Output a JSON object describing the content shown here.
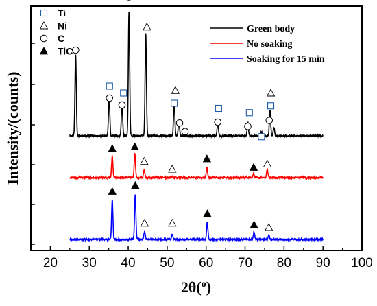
{
  "chart_data": {
    "type": "line",
    "xlabel": "2θ(",
    "xlabel_sup": "o",
    "xlabel_close": ")",
    "ylabel": "Intensity/(counts)",
    "xlim": [
      15,
      100
    ],
    "x_ticks": [
      "20",
      "30",
      "40",
      "50",
      "60",
      "70",
      "80",
      "90",
      "100"
    ],
    "y_ticks": "unlabeled",
    "legend_position": "top-right",
    "marker_legend_position": "top-left",
    "marker_legend": [
      {
        "symbol": "square",
        "label": "Ti"
      },
      {
        "symbol": "triangle-open",
        "label": "Ni"
      },
      {
        "symbol": "circle",
        "label": "C"
      },
      {
        "symbol": "triangle-filled",
        "label": "TiC"
      }
    ],
    "series": [
      {
        "name": "Green body",
        "color": "#000000",
        "x_range": [
          25,
          90
        ],
        "baseline": 0.0,
        "peaks": [
          {
            "x": 26.5,
            "h": 0.95,
            "phase": "C"
          },
          {
            "x": 35.1,
            "h": 0.45,
            "phase": "Ti"
          },
          {
            "x": 38.4,
            "h": 0.38,
            "phase": "Ti"
          },
          {
            "x": 40.2,
            "h": 1.45,
            "phase": "Ti"
          },
          {
            "x": 44.5,
            "h": 1.2,
            "phase": "Ni"
          },
          {
            "x": 51.8,
            "h": 0.38,
            "phase": "Ni"
          },
          {
            "x": 53.0,
            "h": 0.18,
            "phase": "Ti"
          },
          {
            "x": 63.0,
            "h": 0.15,
            "phase": "Ti"
          },
          {
            "x": 70.7,
            "h": 0.16,
            "phase": "Ti"
          },
          {
            "x": 74.2,
            "h": 0.05,
            "phase": "Ti"
          },
          {
            "x": 76.4,
            "h": 0.3,
            "phase": "Ni"
          },
          {
            "x": 77.4,
            "h": 0.1,
            "phase": "Ti"
          }
        ],
        "markers": [
          {
            "x": 26.5,
            "symbol": "circle",
            "h": 1.0
          },
          {
            "x": 35.2,
            "symbol": "circle",
            "h": 0.44
          },
          {
            "x": 35.2,
            "symbol": "square",
            "h": 0.58
          },
          {
            "x": 38.4,
            "symbol": "circle",
            "h": 0.36
          },
          {
            "x": 38.8,
            "symbol": "square",
            "h": 0.5
          },
          {
            "x": 40.2,
            "symbol": "circle",
            "h": 1.62
          },
          {
            "x": 40.2,
            "symbol": "square",
            "h": 1.78
          },
          {
            "x": 44.8,
            "symbol": "triangle-open",
            "h": 1.27
          },
          {
            "x": 51.8,
            "symbol": "square",
            "h": 0.38
          },
          {
            "x": 52.1,
            "symbol": "triangle-open",
            "h": 0.53
          },
          {
            "x": 53.2,
            "symbol": "circle",
            "h": 0.15
          },
          {
            "x": 54.6,
            "symbol": "circle",
            "h": 0.05
          },
          {
            "x": 63.0,
            "symbol": "circle",
            "h": 0.16
          },
          {
            "x": 63.2,
            "symbol": "square",
            "h": 0.32
          },
          {
            "x": 70.7,
            "symbol": "circle",
            "h": 0.11
          },
          {
            "x": 71.1,
            "symbol": "square",
            "h": 0.27
          },
          {
            "x": 74.2,
            "symbol": "square",
            "h": -0.01
          },
          {
            "x": 76.2,
            "symbol": "circle",
            "h": 0.18
          },
          {
            "x": 76.6,
            "symbol": "square",
            "h": 0.35
          },
          {
            "x": 76.6,
            "symbol": "triangle-open",
            "h": 0.5
          }
        ]
      },
      {
        "name": "No soaking",
        "color": "#ff0000",
        "x_range": [
          25,
          90
        ],
        "baseline": 0.0,
        "peaks": [
          {
            "x": 35.9,
            "h": 0.25,
            "phase": "TiC"
          },
          {
            "x": 41.7,
            "h": 0.28,
            "phase": "TiC"
          },
          {
            "x": 44.1,
            "h": 0.1,
            "phase": "Ni"
          },
          {
            "x": 51.3,
            "h": 0.02,
            "phase": "Ni"
          },
          {
            "x": 60.2,
            "h": 0.12,
            "phase": "TiC"
          },
          {
            "x": 72.2,
            "h": 0.05,
            "phase": "TiC"
          },
          {
            "x": 75.7,
            "h": 0.1,
            "phase": "Ni"
          }
        ],
        "markers": [
          {
            "x": 35.9,
            "symbol": "triangle-filled",
            "h": 0.34
          },
          {
            "x": 41.7,
            "symbol": "triangle-filled",
            "h": 0.36
          },
          {
            "x": 44.1,
            "symbol": "triangle-open",
            "h": 0.19
          },
          {
            "x": 51.3,
            "symbol": "triangle-open",
            "h": 0.1
          },
          {
            "x": 60.2,
            "symbol": "triangle-filled",
            "h": 0.22
          },
          {
            "x": 72.2,
            "symbol": "triangle-filled",
            "h": 0.12
          },
          {
            "x": 75.7,
            "symbol": "triangle-open",
            "h": 0.16
          }
        ]
      },
      {
        "name": "Soaking for 15 min",
        "color": "#0000ff",
        "x_range": [
          25,
          90
        ],
        "baseline": 0.0,
        "peaks": [
          {
            "x": 35.9,
            "h": 0.46,
            "phase": "TiC"
          },
          {
            "x": 41.8,
            "h": 0.52,
            "phase": "TiC"
          },
          {
            "x": 44.2,
            "h": 0.09,
            "phase": "Ni"
          },
          {
            "x": 51.3,
            "h": 0.06,
            "phase": "Ni"
          },
          {
            "x": 60.3,
            "h": 0.2,
            "phase": "TiC"
          },
          {
            "x": 72.3,
            "h": 0.09,
            "phase": "TiC"
          },
          {
            "x": 76.1,
            "h": 0.05,
            "phase": "Ni"
          }
        ],
        "markers": [
          {
            "x": 35.9,
            "symbol": "triangle-filled",
            "h": 0.56
          },
          {
            "x": 41.8,
            "symbol": "triangle-filled",
            "h": 0.63
          },
          {
            "x": 44.2,
            "symbol": "triangle-open",
            "h": 0.19
          },
          {
            "x": 51.3,
            "symbol": "triangle-open",
            "h": 0.19
          },
          {
            "x": 60.3,
            "symbol": "triangle-filled",
            "h": 0.3
          },
          {
            "x": 72.3,
            "symbol": "triangle-filled",
            "h": 0.17
          },
          {
            "x": 76.1,
            "symbol": "triangle-open",
            "h": 0.14
          }
        ]
      }
    ]
  }
}
